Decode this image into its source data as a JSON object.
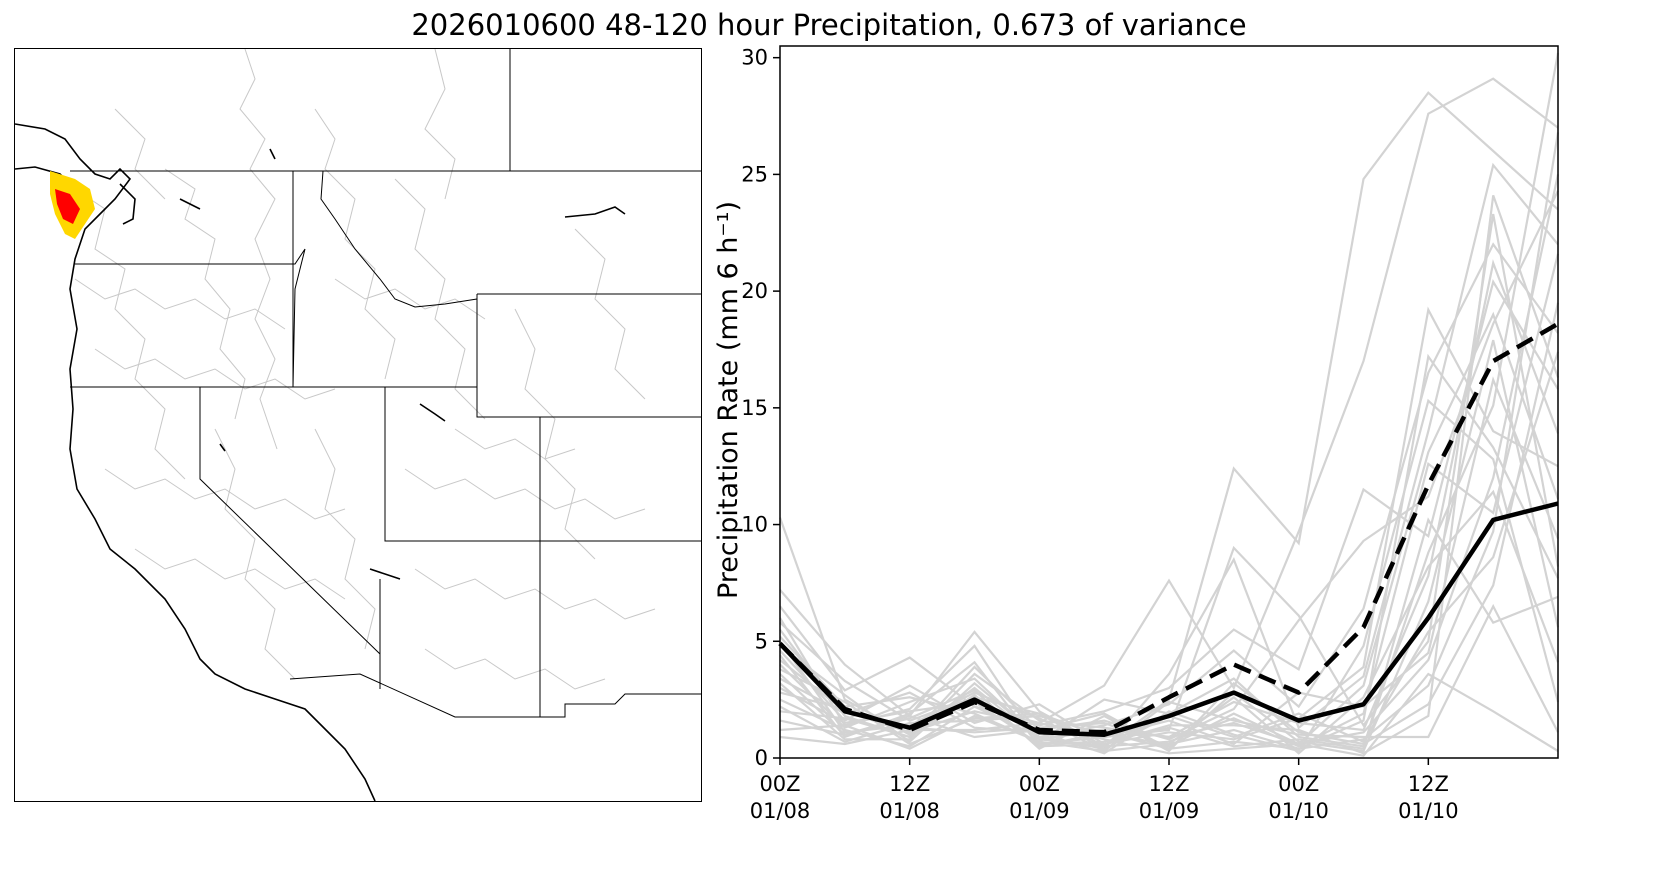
{
  "title": "2026010600 48-120 hour Precipitation, 0.673 of variance",
  "colors": {
    "member": "#d3d3d3",
    "mean": "#000000",
    "map_boundary": "#000000",
    "map_basins": "#c8c8c8",
    "precip_high": "#ff0000",
    "precip_mid": "#ffd700"
  },
  "map": {
    "description_icon": "western-us-map",
    "legend": null
  },
  "chart_data": {
    "type": "line",
    "title": "",
    "xlabel": "",
    "ylabel": "Precipitation Rate (mm 6 h⁻¹)",
    "ylim": [
      0,
      30.5
    ],
    "xlim": [
      0,
      18
    ],
    "yticks": [
      0,
      5,
      10,
      15,
      20,
      25,
      30
    ],
    "xticks": [
      {
        "x": 0,
        "label_top": "00Z",
        "label_bottom": "01/08"
      },
      {
        "x": 3,
        "label_top": "12Z",
        "label_bottom": "01/08"
      },
      {
        "x": 6,
        "label_top": "00Z",
        "label_bottom": "01/09"
      },
      {
        "x": 9,
        "label_top": "12Z",
        "label_bottom": "01/09"
      },
      {
        "x": 12,
        "label_top": "00Z",
        "label_bottom": "01/10"
      },
      {
        "x": 15,
        "label_top": "12Z",
        "label_bottom": "01/10"
      }
    ],
    "grid": false,
    "legend": null,
    "x": [
      0,
      1.5,
      3,
      4.5,
      6,
      7.5,
      9,
      10.5,
      12,
      13.5,
      15,
      16.5,
      18
    ],
    "series": [
      {
        "style": "solid",
        "values": [
          4.9,
          2.0,
          1.3,
          2.5,
          1.1,
          1.0,
          1.8,
          2.8,
          1.6,
          2.3,
          6.0,
          10.2,
          10.9
        ]
      },
      {
        "style": "dashed",
        "values": [
          4.9,
          2.1,
          1.2,
          2.4,
          1.2,
          1.1,
          2.6,
          4.0,
          2.8,
          5.6,
          11.7,
          17.0,
          18.6
        ]
      }
    ],
    "members": [
      [
        10.3,
        2.5,
        1.0,
        3.0,
        0.8,
        1.2,
        0.9,
        1.5,
        0.6,
        1.1,
        4.2,
        12.0,
        25.0
      ],
      [
        7.2,
        4.0,
        1.8,
        5.4,
        2.0,
        0.5,
        2.5,
        12.4,
        9.2,
        24.8,
        28.5,
        26.0,
        23.5
      ],
      [
        6.5,
        2.9,
        4.3,
        2.2,
        1.5,
        3.1,
        7.6,
        3.0,
        9.7,
        17.0,
        27.6,
        29.1,
        27.0
      ],
      [
        6.0,
        1.4,
        2.1,
        4.8,
        0.6,
        0.9,
        1.2,
        9.0,
        6.1,
        1.4,
        5.0,
        23.3,
        8.2
      ],
      [
        5.8,
        3.3,
        1.6,
        2.6,
        1.9,
        0.4,
        3.6,
        8.5,
        1.3,
        3.5,
        14.0,
        25.4,
        22.0
      ],
      [
        5.5,
        1.8,
        0.9,
        3.9,
        1.2,
        1.6,
        0.8,
        2.1,
        5.9,
        9.3,
        11.2,
        18.6,
        24.3
      ],
      [
        5.2,
        2.2,
        2.6,
        1.9,
        0.7,
        2.5,
        1.9,
        3.4,
        0.9,
        0.5,
        8.8,
        15.1,
        30.2
      ],
      [
        5.0,
        1.1,
        1.4,
        2.8,
        1.7,
        0.3,
        0.6,
        1.2,
        0.4,
        0.8,
        3.1,
        9.7,
        26.8
      ],
      [
        4.8,
        2.7,
        0.7,
        3.2,
        0.9,
        1.4,
        2.3,
        4.6,
        2.2,
        6.4,
        16.5,
        22.0,
        18.2
      ],
      [
        4.6,
        1.6,
        3.1,
        1.5,
        2.3,
        0.6,
        1.1,
        0.8,
        1.7,
        3.9,
        19.2,
        14.0,
        12.5
      ],
      [
        4.4,
        0.9,
        1.9,
        4.1,
        0.5,
        1.1,
        0.4,
        2.8,
        0.7,
        0.3,
        6.7,
        17.9,
        5.6
      ],
      [
        4.2,
        2.0,
        1.1,
        2.0,
        1.4,
        2.0,
        3.0,
        5.5,
        3.8,
        11.5,
        9.5,
        20.4,
        15.8
      ],
      [
        4.0,
        1.3,
        2.4,
        3.4,
        0.8,
        0.5,
        0.7,
        1.7,
        0.5,
        1.9,
        12.6,
        10.5,
        21.6
      ],
      [
        3.8,
        2.4,
        0.6,
        1.7,
        1.9,
        0.9,
        1.6,
        0.6,
        2.8,
        2.2,
        4.5,
        16.2,
        9.4
      ],
      [
        3.6,
        1.0,
        1.7,
        2.9,
        0.4,
        1.8,
        0.3,
        3.2,
        1.1,
        0.6,
        2.3,
        7.4,
        19.5
      ],
      [
        3.4,
        1.9,
        2.8,
        1.3,
        1.1,
        0.2,
        2.0,
        1.0,
        0.3,
        4.8,
        15.3,
        12.8,
        2.4
      ],
      [
        3.2,
        0.8,
        0.8,
        3.6,
        1.6,
        1.3,
        0.9,
        2.4,
        1.5,
        1.2,
        7.8,
        21.2,
        13.9
      ],
      [
        3.0,
        1.5,
        2.0,
        2.4,
        0.6,
        0.7,
        1.3,
        0.5,
        0.8,
        0.4,
        10.2,
        5.8,
        6.9
      ],
      [
        2.8,
        2.1,
        1.3,
        1.1,
        1.3,
        1.5,
        0.5,
        1.9,
        0.6,
        3.1,
        13.1,
        19.0,
        11.1
      ],
      [
        2.5,
        1.2,
        0.5,
        2.2,
        0.9,
        0.4,
        1.8,
        0.9,
        1.9,
        0.7,
        5.4,
        8.6,
        17.4
      ],
      [
        2.2,
        0.7,
        1.5,
        1.6,
        1.8,
        1.0,
        0.6,
        2.6,
        0.2,
        2.6,
        8.2,
        11.4,
        4.1
      ],
      [
        2.0,
        1.7,
        0.9,
        2.7,
        0.5,
        0.6,
        1.4,
        1.4,
        1.2,
        0.2,
        1.8,
        24.1,
        16.3
      ],
      [
        1.6,
        1.0,
        1.8,
        0.9,
        1.2,
        1.9,
        0.4,
        0.7,
        0.4,
        1.6,
        17.2,
        13.3,
        7.7
      ],
      [
        1.2,
        1.4,
        0.4,
        1.8,
        0.7,
        0.3,
        2.4,
        1.6,
        1.0,
        0.9,
        0.9,
        6.5,
        1.1
      ],
      [
        0.9,
        0.6,
        1.2,
        1.2,
        1.5,
        0.8,
        0.2,
        0.4,
        0.6,
        0.1,
        3.6,
        2.0,
        0.3
      ]
    ]
  }
}
